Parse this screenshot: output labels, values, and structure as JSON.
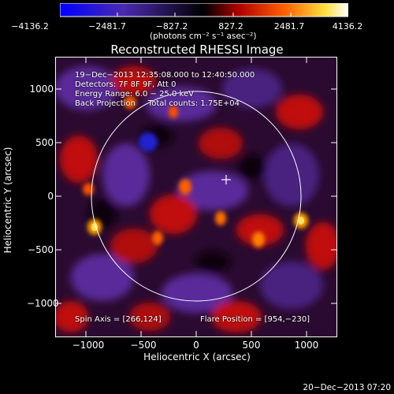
{
  "colorbar": {
    "ticks": [
      "−4136.2",
      "−2481.7",
      "−827.2",
      "827.2",
      "2481.7",
      "4136.2"
    ],
    "units": "(photons cm⁻² s⁻¹ asec⁻²)",
    "colors": [
      "#0000ff",
      "#5020a0",
      "#000000",
      "#d01010",
      "#ff8000",
      "#ffff60",
      "#ffffff"
    ]
  },
  "image": {
    "title": "Reconstructed RHESSI Image",
    "xlabel": "Heliocentric X (arcsec)",
    "ylabel": "Heliocentric Y (arcsec)",
    "xticks": [
      "−1000",
      "−500",
      "0",
      "500",
      "1000"
    ],
    "yticks": [
      "1000",
      "500",
      "0",
      "−500",
      "−1000"
    ],
    "info": {
      "line1": "19−Dec−2013 12:35:08.000 to 12:40:50.000",
      "line2": "Detectors: 7F 8F 9F, Att 0",
      "line3": "Energy Range: 6.0 − 25.0 keV",
      "line4": "Back Projection     Total counts: 1.75E+04",
      "spin_axis": "Spin Axis = [266,124]",
      "flare_position": "Flare Position = [954,−230]"
    }
  },
  "timestamp": "20−Dec−2013 07:20"
}
